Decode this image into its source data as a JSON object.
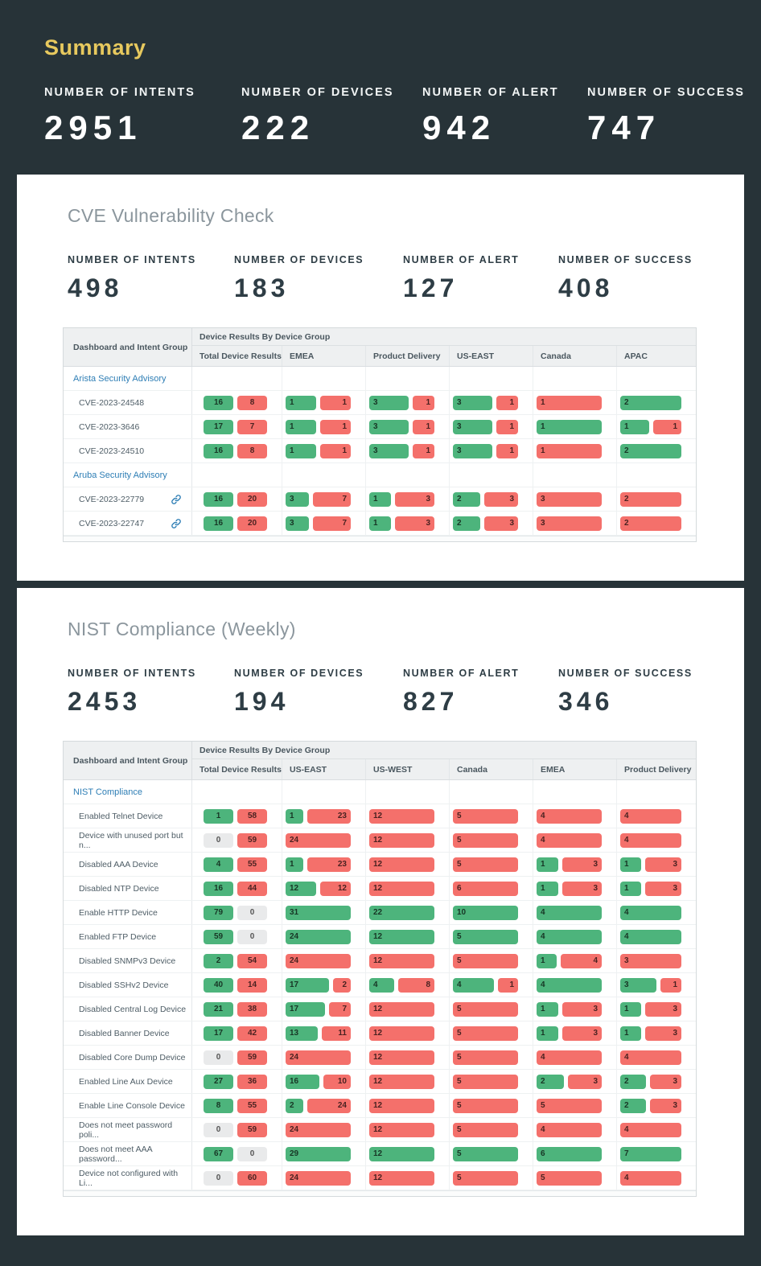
{
  "summary": {
    "title": "Summary",
    "stats": [
      {
        "label": "NUMBER OF INTENTS",
        "value": "2951"
      },
      {
        "label": "NUMBER OF DEVICES",
        "value": "222"
      },
      {
        "label": "NUMBER OF ALERT",
        "value": "942"
      },
      {
        "label": "NUMBER OF SUCCESS",
        "value": "747"
      }
    ]
  },
  "colors": {
    "success_green": "#4db47c",
    "alert_red": "#f4706b",
    "zero_grey": "#e9eaeb",
    "accent_yellow": "#e7c95e",
    "link_blue": "#2e7eb5",
    "header_dark": "#273338"
  },
  "cards": [
    {
      "id": "cve",
      "title": "CVE Vulnerability Check",
      "stats": [
        {
          "label": "NUMBER OF INTENTS",
          "value": "498"
        },
        {
          "label": "NUMBER OF DEVICES",
          "value": "183"
        },
        {
          "label": "NUMBER OF ALERT",
          "value": "127"
        },
        {
          "label": "NUMBER OF SUCCESS",
          "value": "408"
        }
      ],
      "table": {
        "row_header": "Dashboard and Intent Group",
        "group_header": "Device Results By Device Group",
        "columns": [
          "Total Device Results",
          "EMEA",
          "Product Delivery",
          "US-EAST",
          "Canada",
          "APAC"
        ],
        "legend": {
          "first_value": "success",
          "second_value": "alert"
        },
        "rows": [
          {
            "type": "group",
            "label": "Arista Security Advisory"
          },
          {
            "type": "data",
            "label": "CVE-2023-24548",
            "link": false,
            "cells": [
              [
                16,
                8
              ],
              [
                1,
                1
              ],
              [
                3,
                1
              ],
              [
                3,
                1
              ],
              [
                0,
                1
              ],
              [
                2,
                0
              ]
            ]
          },
          {
            "type": "data",
            "label": "CVE-2023-3646",
            "link": false,
            "cells": [
              [
                17,
                7
              ],
              [
                1,
                1
              ],
              [
                3,
                1
              ],
              [
                3,
                1
              ],
              [
                1,
                0
              ],
              [
                1,
                1
              ]
            ]
          },
          {
            "type": "data",
            "label": "CVE-2023-24510",
            "link": false,
            "cells": [
              [
                16,
                8
              ],
              [
                1,
                1
              ],
              [
                3,
                1
              ],
              [
                3,
                1
              ],
              [
                0,
                1
              ],
              [
                2,
                0
              ]
            ]
          },
          {
            "type": "group",
            "label": "Aruba Security Advisory"
          },
          {
            "type": "data",
            "label": "CVE-2023-22779",
            "link": true,
            "cells": [
              [
                16,
                20
              ],
              [
                3,
                7
              ],
              [
                1,
                3
              ],
              [
                2,
                3
              ],
              [
                0,
                3
              ],
              [
                0,
                2
              ]
            ]
          },
          {
            "type": "data",
            "label": "CVE-2023-22747",
            "link": true,
            "cells": [
              [
                16,
                20
              ],
              [
                3,
                7
              ],
              [
                1,
                3
              ],
              [
                2,
                3
              ],
              [
                0,
                3
              ],
              [
                0,
                2
              ]
            ]
          }
        ]
      }
    },
    {
      "id": "nist",
      "title": "NIST Compliance (Weekly)",
      "stats": [
        {
          "label": "NUMBER OF INTENTS",
          "value": "2453"
        },
        {
          "label": "NUMBER OF DEVICES",
          "value": "194"
        },
        {
          "label": "NUMBER OF ALERT",
          "value": "827"
        },
        {
          "label": "NUMBER OF SUCCESS",
          "value": "346"
        }
      ],
      "table": {
        "row_header": "Dashboard and Intent Group",
        "group_header": "Device Results By Device Group",
        "columns": [
          "Total Device Results",
          "US-EAST",
          "US-WEST",
          "Canada",
          "EMEA",
          "Product Delivery"
        ],
        "legend": {
          "first_value": "success",
          "second_value": "alert"
        },
        "rows": [
          {
            "type": "group",
            "label": "NIST Compliance"
          },
          {
            "type": "data",
            "label": "Enabled Telnet Device",
            "link": false,
            "cells": [
              [
                1,
                58
              ],
              [
                1,
                23
              ],
              [
                0,
                12
              ],
              [
                0,
                5
              ],
              [
                0,
                4
              ],
              [
                0,
                4
              ]
            ]
          },
          {
            "type": "data",
            "label": "Device with unused port but n...",
            "link": false,
            "cells": [
              [
                0,
                59
              ],
              [
                0,
                24
              ],
              [
                0,
                12
              ],
              [
                0,
                5
              ],
              [
                0,
                4
              ],
              [
                0,
                4
              ]
            ]
          },
          {
            "type": "data",
            "label": "Disabled AAA Device",
            "link": false,
            "cells": [
              [
                4,
                55
              ],
              [
                1,
                23
              ],
              [
                0,
                12
              ],
              [
                0,
                5
              ],
              [
                1,
                3
              ],
              [
                1,
                3
              ]
            ]
          },
          {
            "type": "data",
            "label": "Disabled NTP Device",
            "link": false,
            "cells": [
              [
                16,
                44
              ],
              [
                12,
                12
              ],
              [
                0,
                12
              ],
              [
                0,
                6
              ],
              [
                1,
                3
              ],
              [
                1,
                3
              ]
            ]
          },
          {
            "type": "data",
            "label": "Enable HTTP Device",
            "link": false,
            "cells": [
              [
                79,
                0
              ],
              [
                31,
                0
              ],
              [
                22,
                0
              ],
              [
                10,
                0
              ],
              [
                4,
                0
              ],
              [
                4,
                0
              ]
            ]
          },
          {
            "type": "data",
            "label": "Enabled FTP Device",
            "link": false,
            "cells": [
              [
                59,
                0
              ],
              [
                24,
                0
              ],
              [
                12,
                0
              ],
              [
                5,
                0
              ],
              [
                4,
                0
              ],
              [
                4,
                0
              ]
            ]
          },
          {
            "type": "data",
            "label": "Disabled SNMPv3 Device",
            "link": false,
            "cells": [
              [
                2,
                54
              ],
              [
                0,
                24
              ],
              [
                0,
                12
              ],
              [
                0,
                5
              ],
              [
                1,
                4
              ],
              [
                0,
                3
              ]
            ]
          },
          {
            "type": "data",
            "label": "Disabled SSHv2 Device",
            "link": false,
            "cells": [
              [
                40,
                14
              ],
              [
                17,
                2
              ],
              [
                4,
                8
              ],
              [
                4,
                1
              ],
              [
                4,
                0
              ],
              [
                3,
                1
              ]
            ]
          },
          {
            "type": "data",
            "label": "Disabled Central Log Device",
            "link": false,
            "cells": [
              [
                21,
                38
              ],
              [
                17,
                7
              ],
              [
                0,
                12
              ],
              [
                0,
                5
              ],
              [
                1,
                3
              ],
              [
                1,
                3
              ]
            ]
          },
          {
            "type": "data",
            "label": "Disabled Banner Device",
            "link": false,
            "cells": [
              [
                17,
                42
              ],
              [
                13,
                11
              ],
              [
                0,
                12
              ],
              [
                0,
                5
              ],
              [
                1,
                3
              ],
              [
                1,
                3
              ]
            ]
          },
          {
            "type": "data",
            "label": "Disabled Core Dump Device",
            "link": false,
            "cells": [
              [
                0,
                59
              ],
              [
                0,
                24
              ],
              [
                0,
                12
              ],
              [
                0,
                5
              ],
              [
                0,
                4
              ],
              [
                0,
                4
              ]
            ]
          },
          {
            "type": "data",
            "label": "Enabled Line Aux Device",
            "link": false,
            "cells": [
              [
                27,
                36
              ],
              [
                16,
                10
              ],
              [
                0,
                12
              ],
              [
                0,
                5
              ],
              [
                2,
                3
              ],
              [
                2,
                3
              ]
            ]
          },
          {
            "type": "data",
            "label": "Enable Line Console Device",
            "link": false,
            "cells": [
              [
                8,
                55
              ],
              [
                2,
                24
              ],
              [
                0,
                12
              ],
              [
                0,
                5
              ],
              [
                0,
                5
              ],
              [
                2,
                3
              ]
            ]
          },
          {
            "type": "data",
            "label": "Does not meet password poli...",
            "link": false,
            "cells": [
              [
                0,
                59
              ],
              [
                0,
                24
              ],
              [
                0,
                12
              ],
              [
                0,
                5
              ],
              [
                0,
                4
              ],
              [
                0,
                4
              ]
            ]
          },
          {
            "type": "data",
            "label": "Does not meet AAA password...",
            "link": false,
            "cells": [
              [
                67,
                0
              ],
              [
                29,
                0
              ],
              [
                12,
                0
              ],
              [
                5,
                0
              ],
              [
                6,
                0
              ],
              [
                7,
                0
              ]
            ]
          },
          {
            "type": "data",
            "label": "Device not configured with Li...",
            "link": false,
            "cells": [
              [
                0,
                60
              ],
              [
                0,
                24
              ],
              [
                0,
                12
              ],
              [
                0,
                5
              ],
              [
                0,
                5
              ],
              [
                0,
                4
              ]
            ]
          }
        ]
      }
    }
  ]
}
